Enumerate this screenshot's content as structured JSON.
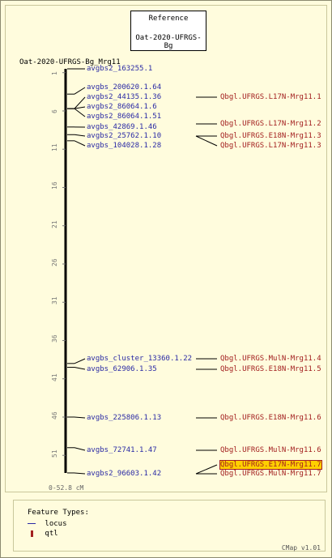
{
  "reference": {
    "title": "Reference",
    "map_set": "Oat-2020-UFRGS-Bg"
  },
  "map": {
    "name": "Oat-2020-UFRGS-Bg_Mrg11",
    "range": "0-52.8 cM"
  },
  "ticks": [
    "1",
    "6",
    "11",
    "16",
    "21",
    "26",
    "31",
    "36",
    "41",
    "46",
    "51"
  ],
  "loci": [
    {
      "label": "avgbs2_163255.1",
      "pos": 0.0
    },
    {
      "label": "avgbs_200620.1.64",
      "pos": 3.3
    },
    {
      "label": "avgbs2_44135.1.36",
      "pos": 5.2
    },
    {
      "label": "avgbs2_86064.1.6",
      "pos": 5.2
    },
    {
      "label": "avgbs2_86064.1.51",
      "pos": 5.2
    },
    {
      "label": "avgbs_42869.1.46",
      "pos": 7.6
    },
    {
      "label": "avgbs2_25762.1.10",
      "pos": 8.6
    },
    {
      "label": "avgbs_104028.1.28",
      "pos": 9.4
    },
    {
      "label": "avgbs_cluster_13360.1.22",
      "pos": 38.5
    },
    {
      "label": "avgbs_62906.1.35",
      "pos": 39.0
    },
    {
      "label": "avgbs_225806.1.13",
      "pos": 45.5
    },
    {
      "label": "avgbs_72741.1.47",
      "pos": 49.5
    },
    {
      "label": "avgbs2_96603.1.42",
      "pos": 52.8
    }
  ],
  "qtls": [
    {
      "label": "Qbgl.UFRGS.L17N-Mrg11.1",
      "pos": 5.2
    },
    {
      "label": "Qbgl.UFRGS.L17N-Mrg11.2",
      "pos": 8.0
    },
    {
      "label": "Qbgl.UFRGS.E18N-Mrg11.3",
      "pos": 8.6
    },
    {
      "label": "Qbgl.UFRGS.L17N-Mrg11.3",
      "pos": 8.6
    },
    {
      "label": "Qbgl.UFRGS.MulN-Mrg11.4",
      "pos": 38.5
    },
    {
      "label": "Qbgl.UFRGS.E18N-Mrg11.5",
      "pos": 39.0
    },
    {
      "label": "Qbgl.UFRGS.E18N-Mrg11.6",
      "pos": 45.5
    },
    {
      "label": "Qbgl.UFRGS.MulN-Mrg11.6",
      "pos": 49.5
    },
    {
      "label": "Qbgl.UFRGS.E17N-Mrg11.7",
      "pos": 52.8,
      "highlight": true
    },
    {
      "label": "Qbgl.UFRGS.MulN-Mrg11.7",
      "pos": 52.8
    }
  ],
  "legend": {
    "title": "Feature Types:",
    "locus": "locus",
    "qtl": "qtl"
  },
  "footer": "CMap v1.01",
  "colors": {
    "locus": "#2a2aa5",
    "qtl": "#a32020",
    "highlight": "#ffd000",
    "background": "#fffcdd"
  }
}
